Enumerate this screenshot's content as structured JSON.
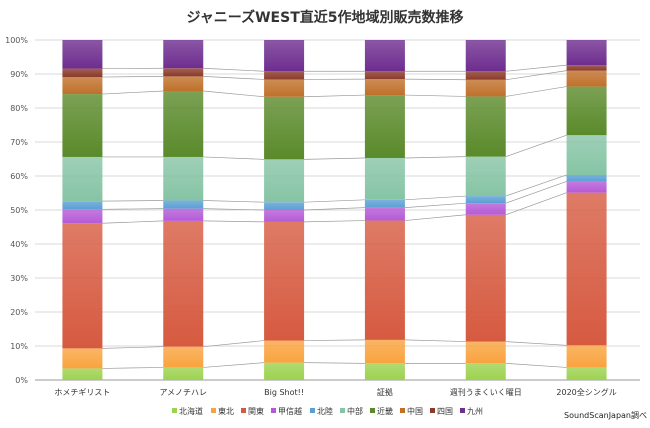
{
  "chart_data": {
    "type": "bar",
    "stacked": "percent",
    "title": "ジャニーズWEST直近5作地域別販売数推移",
    "categories": [
      "ホメチギリスト",
      "アメノチハレ",
      "Big Shot!!",
      "証拠",
      "週刊うまくいく曜日",
      "2020全シングル"
    ],
    "yticks": [
      "0%",
      "10%",
      "20%",
      "30%",
      "40%",
      "50%",
      "60%",
      "70%",
      "80%",
      "90%",
      "100%"
    ],
    "ylim": [
      0,
      100
    ],
    "grid": true,
    "legend_position": "bottom",
    "series": [
      {
        "name": "北海道",
        "color": "#9dd24f",
        "values": [
          3.4,
          3.7,
          5.1,
          4.9,
          4.9,
          3.7
        ]
      },
      {
        "name": "東北",
        "color": "#f9a33e",
        "values": [
          5.9,
          6.1,
          6.5,
          6.9,
          6.4,
          6.5
        ]
      },
      {
        "name": "関東",
        "color": "#d65a40",
        "values": [
          36.8,
          37.0,
          34.9,
          35.1,
          37.3,
          44.9
        ]
      },
      {
        "name": "甲信越",
        "color": "#b55ad6",
        "values": [
          4.1,
          3.6,
          3.5,
          3.8,
          3.4,
          3.3
        ]
      },
      {
        "name": "北陸",
        "color": "#5b9fd4",
        "values": [
          2.4,
          2.4,
          2.3,
          2.3,
          2.1,
          1.9
        ]
      },
      {
        "name": "中部",
        "color": "#86c4a5",
        "values": [
          13.0,
          12.8,
          12.6,
          12.3,
          11.6,
          11.7
        ]
      },
      {
        "name": "近畿",
        "color": "#5a8a2a",
        "values": [
          18.5,
          19.4,
          18.4,
          18.5,
          17.7,
          14.3
        ]
      },
      {
        "name": "中国",
        "color": "#c0702a",
        "values": [
          5.0,
          4.3,
          5.1,
          4.7,
          4.9,
          4.7
        ]
      },
      {
        "name": "四国",
        "color": "#8b3a2a",
        "values": [
          2.5,
          2.4,
          2.4,
          2.3,
          2.5,
          1.6
        ]
      },
      {
        "name": "九州",
        "color": "#6e2d8f",
        "values": [
          8.4,
          8.3,
          9.2,
          9.2,
          9.2,
          7.4
        ]
      }
    ],
    "source_note": "SoundScanJapan調べ"
  }
}
